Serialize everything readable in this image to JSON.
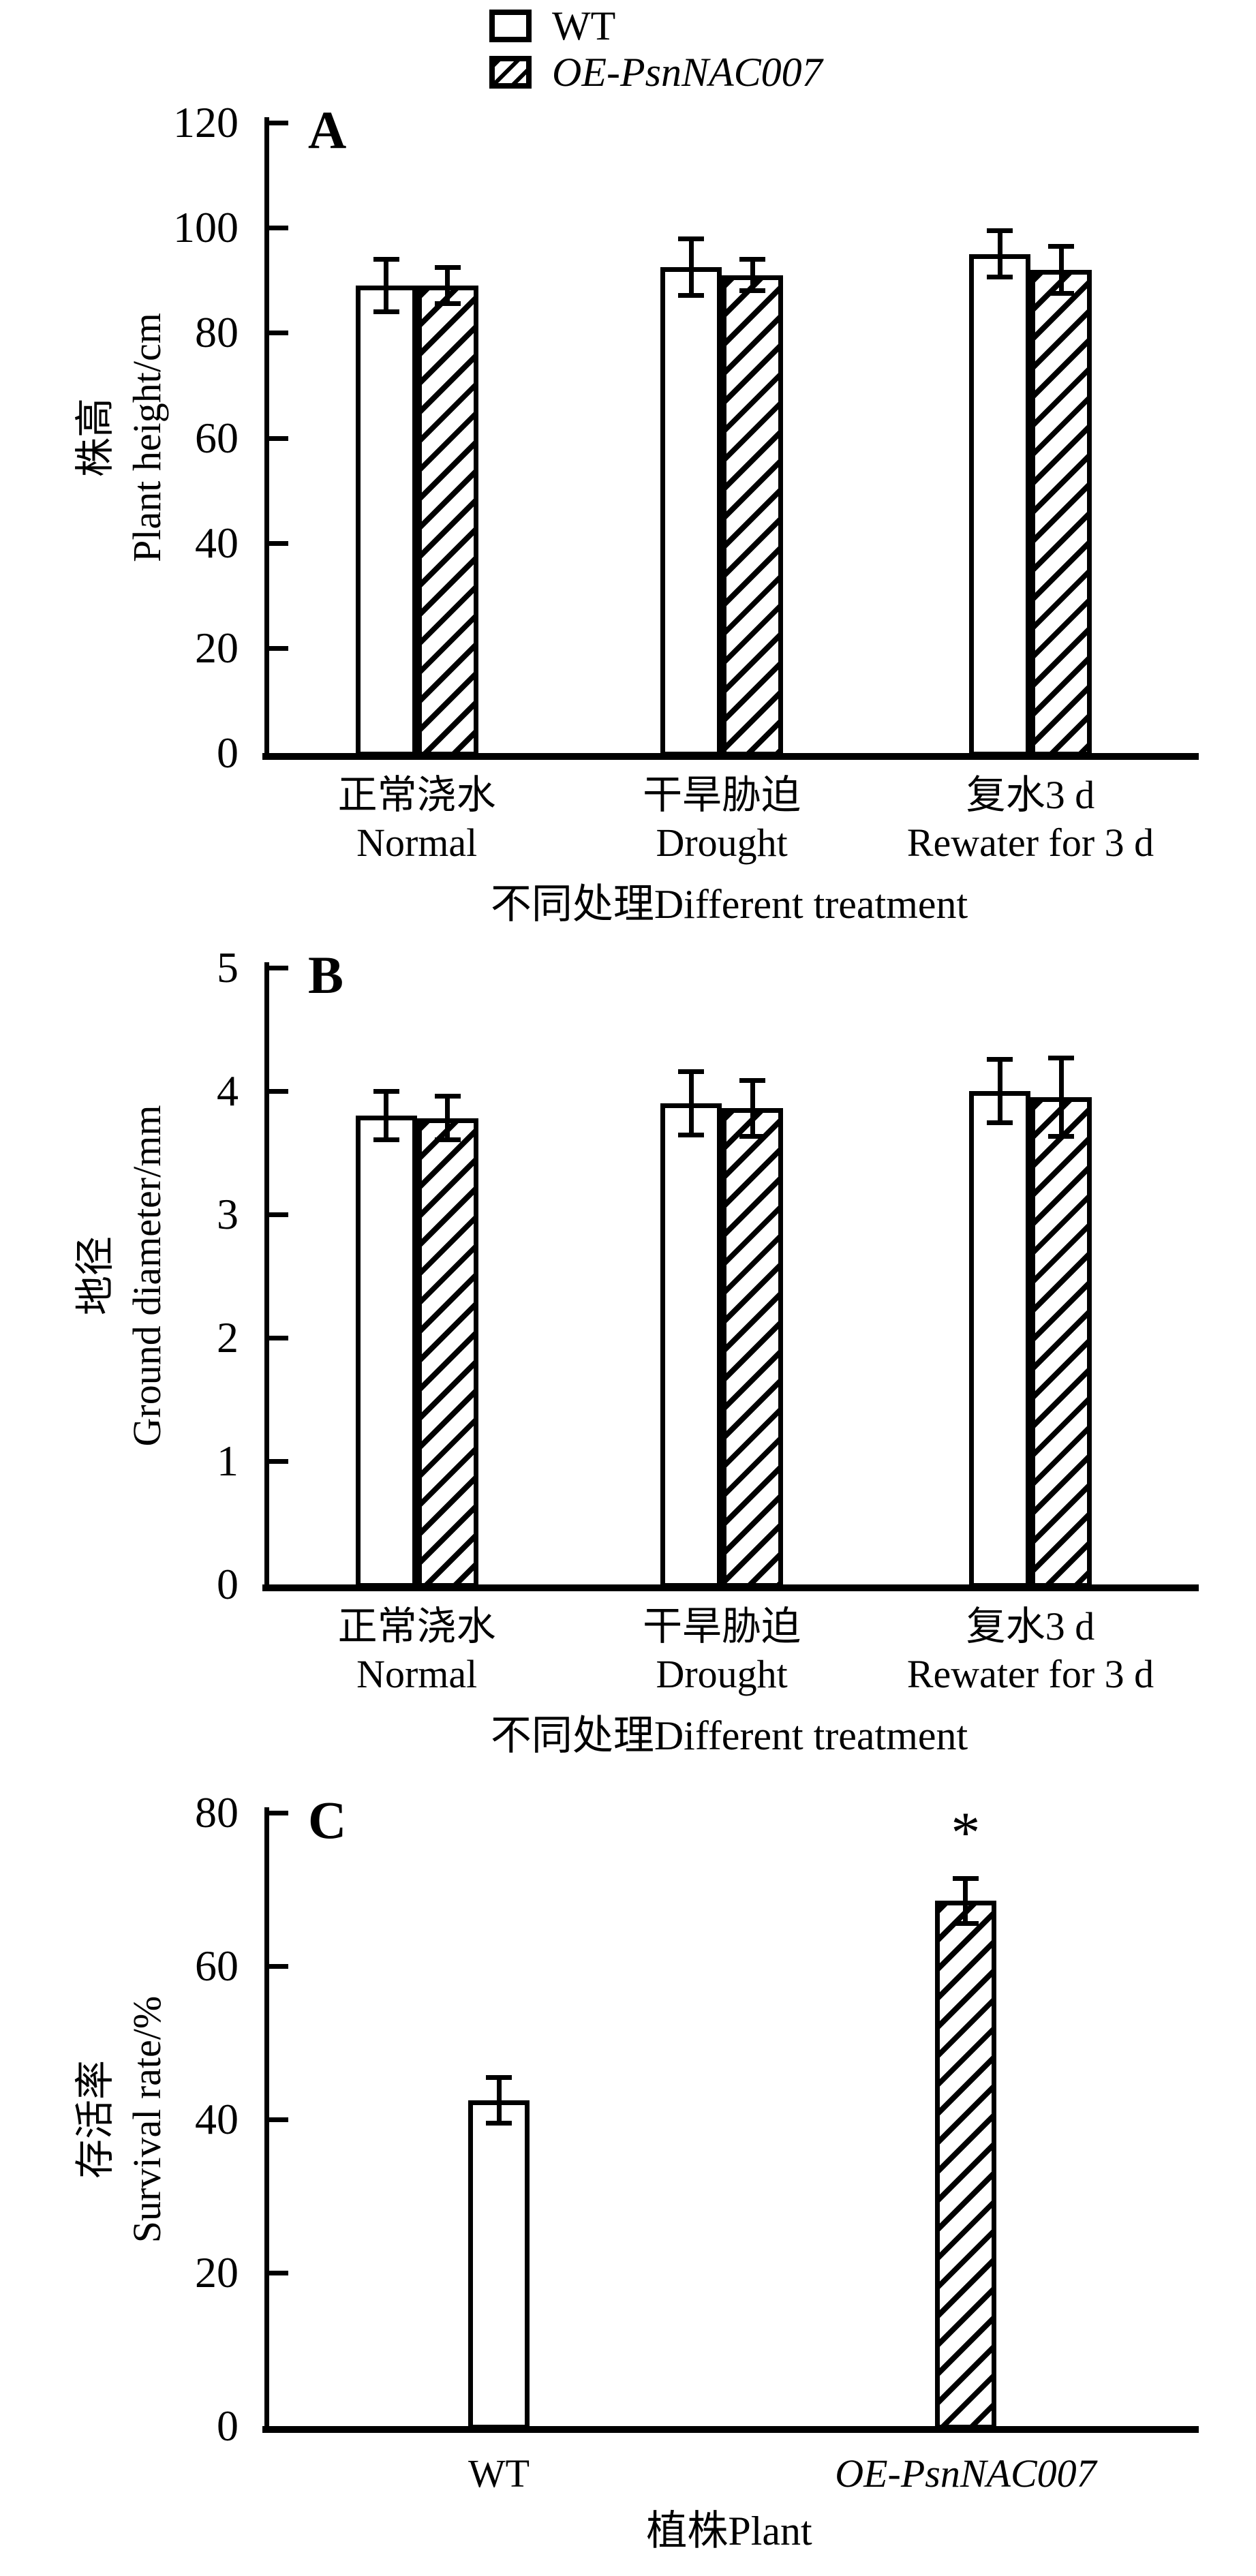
{
  "legend": {
    "items": [
      {
        "label": "WT",
        "swatch": "open",
        "italic": false
      },
      {
        "label": "OE-PsnNAC007",
        "swatch": "hatched",
        "italic": true
      }
    ]
  },
  "colors": {
    "ink": "#000000",
    "bar_fill": "#ffffff",
    "background": "#ffffff"
  },
  "chart_data": [
    {
      "type": "bar",
      "panel_label": "A",
      "ylabel_cn": "株高",
      "ylabel_en": "Plant height/cm",
      "xlabel": "不同处理Different treatment",
      "ylim": [
        0,
        120
      ],
      "yticks": [
        0,
        20,
        40,
        60,
        80,
        100,
        120
      ],
      "legend_position": "top-center",
      "grid": false,
      "groups": [
        {
          "cat_cn": "正常浇水",
          "cat_en": "Normal",
          "bars": [
            {
              "series": "WT",
              "value": 89,
              "error": 5,
              "pattern": "open"
            },
            {
              "series": "OE-PsnNAC007",
              "value": 89,
              "error": 3.5,
              "pattern": "hatched"
            }
          ]
        },
        {
          "cat_cn": "干旱胁迫",
          "cat_en": "Drought",
          "bars": [
            {
              "series": "WT",
              "value": 92.5,
              "error": 5.5,
              "pattern": "open"
            },
            {
              "series": "OE-PsnNAC007",
              "value": 91,
              "error": 3,
              "pattern": "hatched"
            }
          ]
        },
        {
          "cat_cn": "复水3 d",
          "cat_en": "Rewater for 3 d",
          "bars": [
            {
              "series": "WT",
              "value": 95,
              "error": 4.5,
              "pattern": "open"
            },
            {
              "series": "OE-PsnNAC007",
              "value": 92,
              "error": 4.5,
              "pattern": "hatched"
            }
          ]
        }
      ]
    },
    {
      "type": "bar",
      "panel_label": "B",
      "ylabel_cn": "地径",
      "ylabel_en": "Ground diameter/mm",
      "xlabel": "不同处理Different treatment",
      "ylim": [
        0,
        5
      ],
      "yticks": [
        0,
        1,
        2,
        3,
        4,
        5
      ],
      "grid": false,
      "groups": [
        {
          "cat_cn": "正常浇水",
          "cat_en": "Normal",
          "bars": [
            {
              "series": "WT",
              "value": 3.8,
              "error": 0.2,
              "pattern": "open"
            },
            {
              "series": "OE-PsnNAC007",
              "value": 3.78,
              "error": 0.18,
              "pattern": "hatched"
            }
          ]
        },
        {
          "cat_cn": "干旱胁迫",
          "cat_en": "Drought",
          "bars": [
            {
              "series": "WT",
              "value": 3.9,
              "error": 0.26,
              "pattern": "open"
            },
            {
              "series": "OE-PsnNAC007",
              "value": 3.86,
              "error": 0.23,
              "pattern": "hatched"
            }
          ]
        },
        {
          "cat_cn": "复水3 d",
          "cat_en": "Rewater for 3 d",
          "bars": [
            {
              "series": "WT",
              "value": 4.0,
              "error": 0.26,
              "pattern": "open"
            },
            {
              "series": "OE-PsnNAC007",
              "value": 3.95,
              "error": 0.32,
              "pattern": "hatched"
            }
          ]
        }
      ]
    },
    {
      "type": "bar",
      "panel_label": "C",
      "ylabel_cn": "存活率",
      "ylabel_en": "Survival rate/%",
      "xlabel": "植株Plant",
      "ylim": [
        0,
        80
      ],
      "yticks": [
        0,
        20,
        40,
        60,
        80
      ],
      "grid": false,
      "groups": [
        {
          "cat_en": "WT",
          "cat_italic": false,
          "bars": [
            {
              "series": "WT",
              "value": 42.5,
              "error": 3,
              "pattern": "open"
            }
          ]
        },
        {
          "cat_en": "OE-PsnNAC007",
          "cat_italic": true,
          "bars": [
            {
              "series": "OE-PsnNAC007",
              "value": 68.5,
              "error": 3,
              "pattern": "hatched",
              "annotation": "*"
            }
          ]
        }
      ]
    }
  ]
}
